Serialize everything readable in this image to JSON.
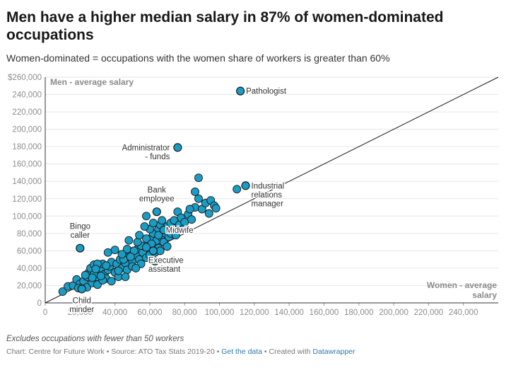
{
  "header": {
    "title": "Men have a higher median salary in 87% of women-dominated occupations",
    "subtitle": "Women-dominated = occupations with the women share of workers is greater than 60%"
  },
  "footer": {
    "notes": "Excludes occupations with fewer than 50 workers",
    "source_prefix": "Chart: Centre for Future Work • Source: ATO Tax Stats 2019-20 • ",
    "get_data": "Get the data",
    "created_with_prefix": " • Created with ",
    "datawrapper": "Datawrapper"
  },
  "colors": {
    "point_fill": "#1a9cc5",
    "point_stroke": "#1a1a1a",
    "axis": "#333333",
    "tick_text": "#8c8c8c"
  },
  "chart_data": {
    "type": "scatter",
    "xlabel": "Women - average salary",
    "ylabel": "Men - average salary",
    "xlim": [
      0,
      260000
    ],
    "ylim": [
      0,
      260000
    ],
    "x_ticks": [
      0,
      20000,
      40000,
      60000,
      80000,
      100000,
      120000,
      140000,
      160000,
      180000,
      200000,
      220000,
      240000
    ],
    "x_tick_labels": [
      "0",
      "20,000",
      "40,000",
      "60,000",
      "80,000",
      "100,000",
      "120,000",
      "140,000",
      "160,000",
      "180,000",
      "200,000",
      "220,000",
      "240,000"
    ],
    "y_ticks": [
      0,
      20000,
      40000,
      60000,
      80000,
      100000,
      120000,
      140000,
      160000,
      180000,
      200000,
      220000,
      240000,
      260000
    ],
    "y_tick_labels": [
      "0",
      "20,000",
      "40,000",
      "60,000",
      "80,000",
      "100,000",
      "120,000",
      "140,000",
      "160,000",
      "180,000",
      "200,000",
      "220,000",
      "240,000",
      "$260,000"
    ],
    "reference_line": "equal salaries (y = x)",
    "highlighted": [
      {
        "label": "Pathologist",
        "x": 112000,
        "y": 244000
      },
      {
        "label": "Administrator - funds",
        "x": 76000,
        "y": 179000
      },
      {
        "label": "Industrial relations manager",
        "x": 115000,
        "y": 135000
      },
      {
        "label": "Bank employee",
        "x": 64000,
        "y": 105000
      },
      {
        "label": "Bingo caller",
        "x": 20000,
        "y": 63000
      },
      {
        "label": "Midwife",
        "x": 68000,
        "y": 84000
      },
      {
        "label": "Executive assistant",
        "x": 62000,
        "y": 60000
      },
      {
        "label": "Child minder",
        "x": 21000,
        "y": 16000
      }
    ],
    "points": [
      [
        10000,
        13000
      ],
      [
        13000,
        19000
      ],
      [
        16000,
        20000
      ],
      [
        18000,
        27000
      ],
      [
        20000,
        22000
      ],
      [
        22000,
        25000
      ],
      [
        24000,
        30000
      ],
      [
        24000,
        18000
      ],
      [
        25000,
        35000
      ],
      [
        26000,
        40000
      ],
      [
        27000,
        23000
      ],
      [
        28000,
        44000
      ],
      [
        30000,
        30000
      ],
      [
        30000,
        21000
      ],
      [
        31000,
        36000
      ],
      [
        32000,
        40000
      ],
      [
        33000,
        45000
      ],
      [
        34000,
        33000
      ],
      [
        35000,
        28000
      ],
      [
        36000,
        38000
      ],
      [
        37000,
        42000
      ],
      [
        38000,
        47000
      ],
      [
        40000,
        35000
      ],
      [
        41000,
        45000
      ],
      [
        42000,
        30000
      ],
      [
        43000,
        50000
      ],
      [
        44000,
        40000
      ],
      [
        45000,
        55000
      ],
      [
        46000,
        46000
      ],
      [
        47000,
        38000
      ],
      [
        48000,
        60000
      ],
      [
        50000,
        48000
      ],
      [
        50000,
        42000
      ],
      [
        52000,
        55000
      ],
      [
        53000,
        62000
      ],
      [
        54000,
        50000
      ],
      [
        55000,
        45000
      ],
      [
        56000,
        58000
      ],
      [
        57000,
        65000
      ],
      [
        58000,
        52000
      ],
      [
        59000,
        70000
      ],
      [
        60000,
        62000
      ],
      [
        60000,
        55000
      ],
      [
        61000,
        75000
      ],
      [
        62000,
        66000
      ],
      [
        62000,
        80000
      ],
      [
        63000,
        58000
      ],
      [
        64000,
        68000
      ],
      [
        64000,
        72000
      ],
      [
        65000,
        85000
      ],
      [
        65000,
        63000
      ],
      [
        66000,
        90000
      ],
      [
        67000,
        75000
      ],
      [
        68000,
        70000
      ],
      [
        69000,
        80000
      ],
      [
        70000,
        88000
      ],
      [
        71000,
        76000
      ],
      [
        72000,
        92000
      ],
      [
        73000,
        82000
      ],
      [
        74000,
        95000
      ],
      [
        75000,
        86000
      ],
      [
        76000,
        105000
      ],
      [
        77000,
        90000
      ],
      [
        78000,
        98000
      ],
      [
        80000,
        93000
      ],
      [
        82000,
        102000
      ],
      [
        84000,
        96000
      ],
      [
        86000,
        110000
      ],
      [
        88000,
        120000
      ],
      [
        90000,
        108000
      ],
      [
        92000,
        115000
      ],
      [
        94000,
        103000
      ],
      [
        95000,
        118000
      ],
      [
        97000,
        112000
      ],
      [
        98000,
        109000
      ],
      [
        110000,
        131000
      ],
      [
        88000,
        144000
      ],
      [
        86000,
        128000
      ],
      [
        58000,
        100000
      ],
      [
        48000,
        72000
      ],
      [
        47000,
        62000
      ],
      [
        36000,
        58000
      ],
      [
        40000,
        61000
      ],
      [
        30000,
        45000
      ],
      [
        28000,
        33000
      ],
      [
        33000,
        26000
      ],
      [
        52000,
        40000
      ],
      [
        55000,
        66000
      ],
      [
        58000,
        74000
      ],
      [
        60000,
        85000
      ],
      [
        62000,
        92000
      ],
      [
        57000,
        88000
      ],
      [
        63000,
        48000
      ],
      [
        66000,
        60000
      ],
      [
        70000,
        65000
      ],
      [
        45000,
        50000
      ],
      [
        42000,
        37000
      ],
      [
        38000,
        25000
      ],
      [
        35000,
        43000
      ],
      [
        32000,
        31000
      ],
      [
        27000,
        29000
      ],
      [
        23000,
        32000
      ],
      [
        19000,
        17000
      ],
      [
        29000,
        39000
      ],
      [
        44000,
        56000
      ],
      [
        51000,
        60000
      ],
      [
        53000,
        70000
      ],
      [
        67000,
        95000
      ],
      [
        72000,
        80000
      ],
      [
        79000,
        85000
      ],
      [
        83000,
        108000
      ],
      [
        75000,
        78000
      ],
      [
        46000,
        30000
      ],
      [
        54000,
        78000
      ],
      [
        61000,
        68000
      ],
      [
        65000,
        78000
      ],
      [
        58000,
        64000
      ],
      [
        49000,
        53000
      ]
    ]
  }
}
